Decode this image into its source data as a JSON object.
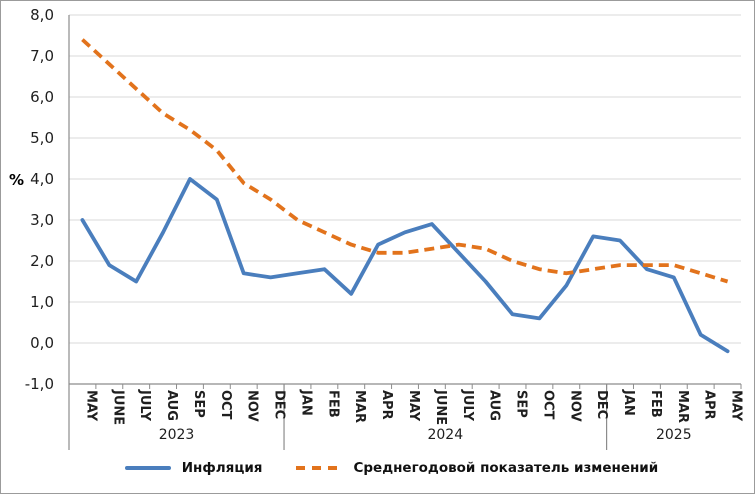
{
  "chart_data": {
    "type": "line",
    "title": "",
    "ylabel": "%",
    "ylim": [
      -1,
      8
    ],
    "ytick_labels": [
      "8,0",
      "7,0",
      "6,0",
      "5,0",
      "4,0",
      "3,0",
      "2,0",
      "1,0",
      "0,0",
      "-1,0"
    ],
    "ytick_values": [
      8,
      7,
      6,
      5,
      4,
      3,
      2,
      1,
      0,
      -1
    ],
    "grid": "horizontal",
    "legend_position": "bottom",
    "categories": [
      "MAY",
      "JUNE",
      "JULY",
      "AUG",
      "SEP",
      "OCT",
      "NOV",
      "DEC",
      "JAN",
      "FEB",
      "MAR",
      "APR",
      "MAY",
      "JUNE",
      "JULY",
      "AUG",
      "SEP",
      "OCT",
      "NOV",
      "DEC",
      "JAN",
      "FEB",
      "MAR",
      "APR",
      "MAY"
    ],
    "year_groups": [
      {
        "label": "2023",
        "count": 8
      },
      {
        "label": "2024",
        "count": 12
      },
      {
        "label": "2025",
        "count": 5
      }
    ],
    "series": [
      {
        "name": "Инфляция",
        "style": "solid",
        "color": "#4a7ebd",
        "values": [
          3.0,
          1.9,
          1.5,
          2.7,
          4.0,
          3.5,
          1.7,
          1.6,
          1.7,
          1.8,
          1.2,
          2.4,
          2.7,
          2.9,
          2.2,
          1.5,
          0.7,
          0.6,
          1.4,
          2.6,
          2.5,
          1.8,
          1.6,
          0.2,
          -0.2
        ]
      },
      {
        "name": "Среднегодовой показатель изменений",
        "style": "dashed",
        "color": "#e2731c",
        "values": [
          7.4,
          6.8,
          6.2,
          5.6,
          5.2,
          4.7,
          3.9,
          3.5,
          3.0,
          2.7,
          2.4,
          2.2,
          2.2,
          2.3,
          2.4,
          2.3,
          2.0,
          1.8,
          1.7,
          1.8,
          1.9,
          1.9,
          1.9,
          1.7,
          1.5
        ]
      }
    ],
    "axis_color": "#8c8c8c",
    "gridline_color": "#d9d9d9",
    "label_color": "#1f1f1f"
  }
}
